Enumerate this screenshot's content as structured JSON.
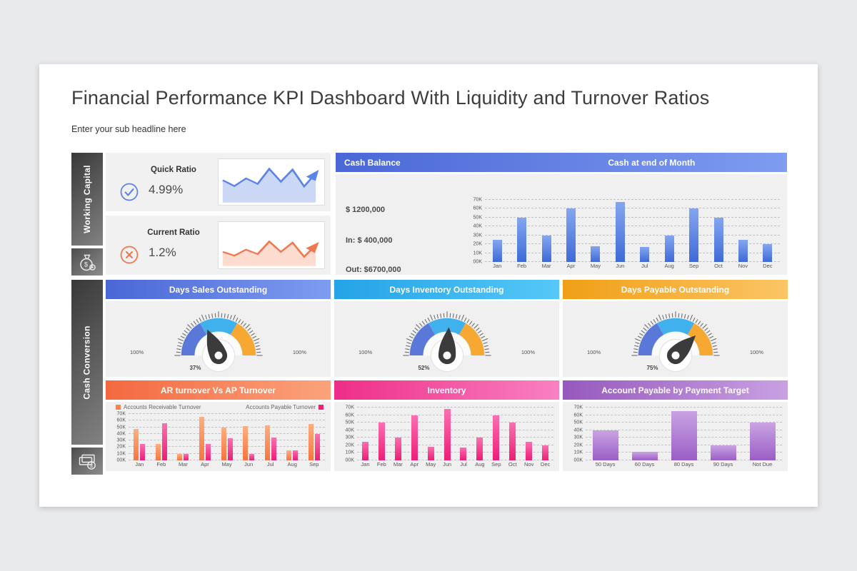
{
  "page": {
    "title": "Financial Performance KPI Dashboard With Liquidity and Turnover Ratios",
    "subtitle": "Enter your sub headline here"
  },
  "sidebar": {
    "tabs": [
      {
        "label": "Working Capital",
        "icon": "money-bag-gear-icon"
      },
      {
        "label": "Cash Conversion",
        "icon": "cash-coin-icon"
      }
    ]
  },
  "kpi_cards": [
    {
      "label": "Quick Ratio",
      "value": "4.99%",
      "icon": "check-circle-icon",
      "color": "#4f78e0"
    },
    {
      "label": "Current Ratio",
      "value": "1.2%",
      "icon": "cross-circle-icon",
      "color": "#f07850"
    }
  ],
  "cash_panel": {
    "title": "Cash Balance",
    "chart_title": "Cash at end of Month",
    "balance": "$ 1200,000",
    "inflow": "In: $ 400,000",
    "outflow": "Out: $6700,000"
  },
  "gauges": [
    {
      "title": "Days Sales Outstanding",
      "value_pct": 37,
      "value_label": "37%",
      "min_label": "100%",
      "max_label": "100%"
    },
    {
      "title": "Days Inventory Outstanding",
      "value_pct": 52,
      "value_label": "52%",
      "min_label": "100%",
      "max_label": "100%"
    },
    {
      "title": "Days Payable Outstanding",
      "value_pct": 75,
      "value_label": "75%",
      "min_label": "100%",
      "max_label": "100%"
    }
  ],
  "bottom_panels": [
    {
      "title": "AR turnover Vs AP Turnover"
    },
    {
      "title": "Inventory"
    },
    {
      "title": "Account Payable by Payment Target"
    }
  ],
  "colors": {
    "header_blue": "#4a67d6",
    "header_sky": "#24a3e6",
    "header_amber": "#f09f16",
    "header_orange": "#f4683f",
    "header_pink": "#ee2d87",
    "header_purple": "#9659bd",
    "bar_blue": "#3f6ad6",
    "bar_orange": "#f7743f",
    "bar_pink": "#ec1e75",
    "bar_purple": "#9a5ec6",
    "gauge_blue": "#5a78d8",
    "gauge_sky": "#41b1ee",
    "gauge_orange": "#f6a832",
    "kpi_blue": "#4f78e0",
    "kpi_orange": "#f07850"
  },
  "chart_data": [
    {
      "id": "quick_ratio_trend",
      "type": "area",
      "values": [
        57,
        41,
        62,
        47,
        88,
        53,
        86,
        40,
        76
      ],
      "title": "Quick Ratio trend sparkline",
      "color": "#5b83e8",
      "fill": "#c9d7f5"
    },
    {
      "id": "current_ratio_trend",
      "type": "area",
      "values": [
        34,
        24,
        40,
        28,
        62,
        34,
        59,
        21,
        52
      ],
      "title": "Current Ratio trend sparkline",
      "color": "#f07850",
      "fill": "#fbdccf"
    },
    {
      "id": "cash_at_end_of_month",
      "type": "bar",
      "title": "Cash at end of Month",
      "categories": [
        "Jan",
        "Feb",
        "Mar",
        "Apr",
        "May",
        "Jun",
        "Jul",
        "Aug",
        "Sep",
        "Oct",
        "Nov",
        "Dec"
      ],
      "values": [
        25,
        50,
        30,
        60,
        18,
        68,
        17,
        30,
        60,
        50,
        25,
        20
      ],
      "unit": "K",
      "xlabel": "",
      "ylabel": "",
      "ylim": [
        0,
        70
      ],
      "yticks": [
        "00K",
        "10K",
        "20K",
        "30K",
        "40K",
        "50K",
        "60K",
        "70K"
      ],
      "grid": true
    },
    {
      "id": "ar_vs_ap_turnover",
      "type": "bar",
      "title": "AR turnover Vs AP Turnover",
      "categories": [
        "Jan",
        "Feb",
        "Mar",
        "Apr",
        "May",
        "Jun",
        "Jul",
        "Aug",
        "Sep"
      ],
      "series": [
        {
          "name": "Accounts Receivable Turnover",
          "values": [
            47,
            25,
            10,
            66,
            50,
            52,
            53,
            15,
            55
          ]
        },
        {
          "name": "Accounts Payable Turnover",
          "values": [
            25,
            56,
            10,
            25,
            33,
            10,
            35,
            15,
            40
          ]
        }
      ],
      "unit": "K",
      "xlabel": "",
      "ylabel": "",
      "ylim": [
        0,
        70
      ],
      "yticks": [
        "00K",
        "10K",
        "20K",
        "30K",
        "40K",
        "50K",
        "60K",
        "70K"
      ],
      "grid": true,
      "legend_position": "top"
    },
    {
      "id": "inventory",
      "type": "bar",
      "title": "Inventory",
      "categories": [
        "Jan",
        "Feb",
        "Mar",
        "Apr",
        "May",
        "Jun",
        "Jul",
        "Aug",
        "Sep",
        "Oct",
        "Nov",
        "Dec"
      ],
      "values": [
        25,
        50,
        30,
        60,
        18,
        68,
        17,
        30,
        60,
        50,
        25,
        20
      ],
      "unit": "K",
      "xlabel": "",
      "ylabel": "",
      "ylim": [
        0,
        70
      ],
      "yticks": [
        "00K",
        "10K",
        "20K",
        "30K",
        "40K",
        "50K",
        "60K",
        "70K"
      ],
      "grid": true
    },
    {
      "id": "account_payable_by_payment_target",
      "type": "bar",
      "title": "Account Payable by Payment Target",
      "categories": [
        "50 Days",
        "60 Days",
        "80 Days",
        "90 Days",
        "Not Due"
      ],
      "values": [
        40,
        11,
        65,
        20,
        50
      ],
      "unit": "K",
      "xlabel": "",
      "ylabel": "",
      "ylim": [
        0,
        70
      ],
      "yticks": [
        "00K",
        "10K",
        "20K",
        "30K",
        "40K",
        "50K",
        "60K",
        "70K"
      ],
      "grid": true
    }
  ]
}
